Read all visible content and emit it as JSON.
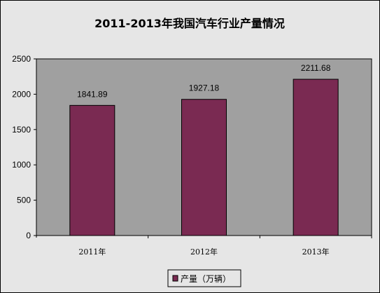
{
  "colors": {
    "chart_area": "#e6e6e6",
    "plot_area": "#a0a0a0",
    "bar": "#7a2a52",
    "border": "#000000"
  },
  "chart_data": {
    "type": "bar",
    "title": "2011-2013年我国汽车行业产量情况",
    "categories": [
      "2011年",
      "2012年",
      "2013年"
    ],
    "series": [
      {
        "name": "产量（万辆）",
        "values": [
          1841.89,
          1927.18,
          2211.68
        ]
      }
    ],
    "data_labels": [
      "1841.89",
      "1927.18",
      "2211.68"
    ],
    "y_ticks": [
      "0",
      "500",
      "1000",
      "1500",
      "2000",
      "2500"
    ],
    "ylim": [
      0,
      2500
    ],
    "xlabel": "",
    "ylabel": "",
    "grid": false,
    "legend_position": "bottom"
  }
}
